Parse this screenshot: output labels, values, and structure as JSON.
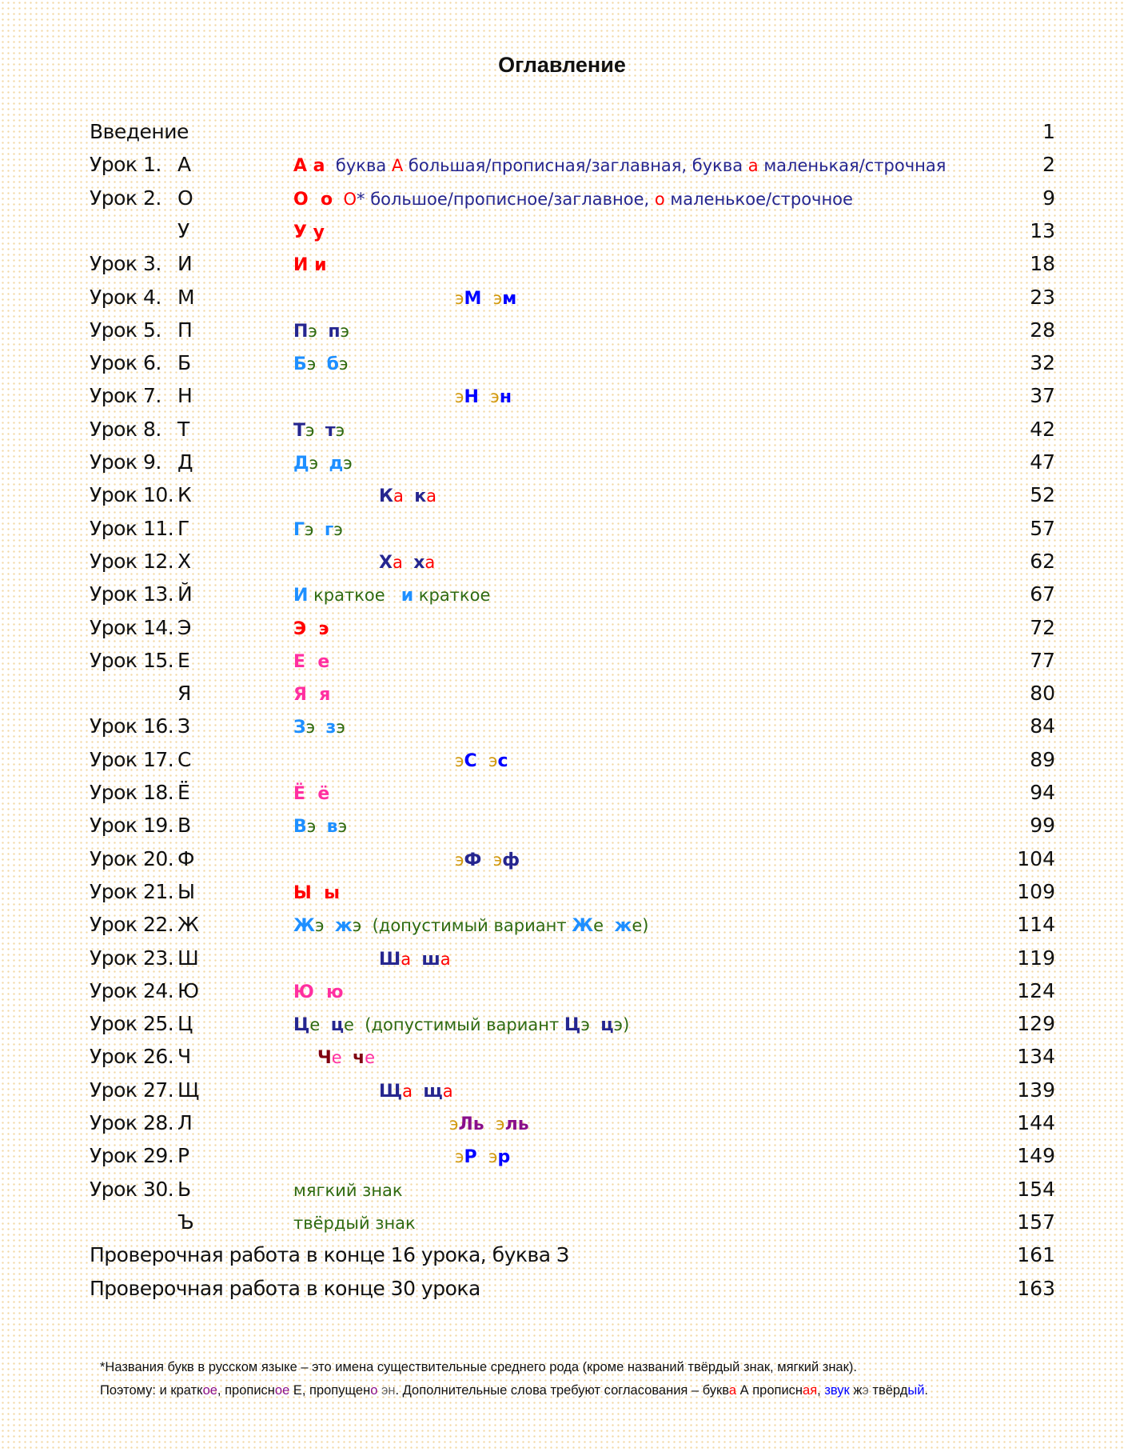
{
  "title": "Оглавление",
  "colors": {
    "r": "#ff0000",
    "n": "#26268f",
    "g": "#2f6a10",
    "l": "#1e8fff",
    "y": "#d29a10",
    "b": "#0000ff",
    "m": "#ff2fa0",
    "d": "#800010",
    "p": "#8a0f8a",
    "k": "#111111",
    "e": "#666666"
  },
  "rows": [
    {
      "label": "Введение",
      "letter": "",
      "page": "1",
      "segs": []
    },
    {
      "label": "Урок 1.",
      "letter": "А",
      "page": "2",
      "segs": [
        {
          "t": "А а",
          "c": "r",
          "b": 1
        },
        {
          "t": "  буква ",
          "c": "n"
        },
        {
          "t": "А",
          "c": "r"
        },
        {
          "t": " большая/прописная/заглавная, буква ",
          "c": "n"
        },
        {
          "t": "а",
          "c": "r"
        },
        {
          "t": " маленькая/строчная",
          "c": "n"
        }
      ]
    },
    {
      "label": "Урок 2.",
      "letter": "О",
      "page": "9",
      "segs": [
        {
          "t": "О  о",
          "c": "r",
          "b": 1
        },
        {
          "t": "  О",
          "c": "r"
        },
        {
          "t": "* большое/прописное/заглавное, ",
          "c": "n"
        },
        {
          "t": "о",
          "c": "r"
        },
        {
          "t": " маленькое/строчное",
          "c": "n"
        }
      ]
    },
    {
      "label": "",
      "letter": "У",
      "page": "13",
      "segs": [
        {
          "t": "У у",
          "c": "r",
          "b": 1
        }
      ]
    },
    {
      "label": "Урок 3.",
      "letter": "И",
      "page": "18",
      "segs": [
        {
          "t": "И и",
          "c": "r",
          "b": 1
        }
      ]
    },
    {
      "label": "Урок 4.",
      "letter": "М",
      "page": "23",
      "segs": [
        {
          "t": "э",
          "c": "y"
        },
        {
          "t": "М ",
          "c": "b",
          "b": 1
        },
        {
          "t": " э",
          "c": "y"
        },
        {
          "t": "м",
          "c": "b",
          "b": 1
        }
      ]
    },
    {
      "label": "Урок 5.",
      "letter": "П",
      "page": "28",
      "segs": [
        {
          "t": "П",
          "c": "n",
          "b": 1
        },
        {
          "t": "э  ",
          "c": "g"
        },
        {
          "t": "п",
          "c": "n",
          "b": 1
        },
        {
          "t": "э",
          "c": "g"
        }
      ]
    },
    {
      "label": "Урок 6.",
      "letter": "Б",
      "page": "32",
      "segs": [
        {
          "t": "Б",
          "c": "l",
          "b": 1
        },
        {
          "t": "э  ",
          "c": "g"
        },
        {
          "t": "б",
          "c": "l",
          "b": 1
        },
        {
          "t": "э",
          "c": "g"
        }
      ]
    },
    {
      "label": "Урок 7.",
      "letter": "Н",
      "page": "37",
      "segs": [
        {
          "t": "э",
          "c": "y"
        },
        {
          "t": "Н ",
          "c": "b",
          "b": 1
        },
        {
          "t": " э",
          "c": "y"
        },
        {
          "t": "н",
          "c": "b",
          "b": 1
        }
      ]
    },
    {
      "label": "Урок 8.",
      "letter": "Т",
      "page": "42",
      "segs": [
        {
          "t": "Т",
          "c": "n",
          "b": 1
        },
        {
          "t": "э  ",
          "c": "g"
        },
        {
          "t": "т",
          "c": "n",
          "b": 1
        },
        {
          "t": "э",
          "c": "g"
        }
      ]
    },
    {
      "label": "Урок 9.",
      "letter": "Д",
      "page": "47",
      "segs": [
        {
          "t": "Д",
          "c": "l",
          "b": 1
        },
        {
          "t": "э  ",
          "c": "g"
        },
        {
          "t": "д",
          "c": "l",
          "b": 1
        },
        {
          "t": "э",
          "c": "g"
        }
      ]
    },
    {
      "label": "Урок 10.",
      "letter": "К",
      "page": "52",
      "segs": [
        {
          "t": "К",
          "c": "n",
          "b": 1
        },
        {
          "t": "а  ",
          "c": "r"
        },
        {
          "t": "к",
          "c": "n",
          "b": 1
        },
        {
          "t": "а",
          "c": "r"
        }
      ]
    },
    {
      "label": "Урок 11.",
      "letter": "Г",
      "page": "57",
      "segs": [
        {
          "t": "Г",
          "c": "l",
          "b": 1
        },
        {
          "t": "э  ",
          "c": "g"
        },
        {
          "t": "г",
          "c": "l",
          "b": 1
        },
        {
          "t": "э",
          "c": "g"
        }
      ]
    },
    {
      "label": "Урок 12.",
      "letter": "Х",
      "page": "62",
      "segs": [
        {
          "t": "Х",
          "c": "n",
          "b": 1
        },
        {
          "t": "а  ",
          "c": "r"
        },
        {
          "t": "х",
          "c": "n",
          "b": 1
        },
        {
          "t": "а",
          "c": "r"
        }
      ]
    },
    {
      "label": "Урок 13.",
      "letter": "Й",
      "page": "67",
      "segs": [
        {
          "t": "И",
          "c": "l",
          "b": 1
        },
        {
          "t": " краткое   ",
          "c": "g"
        },
        {
          "t": "и",
          "c": "l",
          "b": 1
        },
        {
          "t": " краткое",
          "c": "g"
        }
      ]
    },
    {
      "label": "Урок 14.",
      "letter": "Э",
      "page": "72",
      "segs": [
        {
          "t": "Э  э",
          "c": "r",
          "b": 1
        }
      ]
    },
    {
      "label": "Урок 15.",
      "letter": "Е",
      "page": "77",
      "segs": [
        {
          "t": "Е  е",
          "c": "m",
          "b": 1
        }
      ]
    },
    {
      "label": "",
      "letter": "Я",
      "page": "80",
      "segs": [
        {
          "t": "Я  я",
          "c": "m",
          "b": 1
        }
      ]
    },
    {
      "label": "Урок 16.",
      "letter": "З",
      "page": "84",
      "segs": [
        {
          "t": "З",
          "c": "l",
          "b": 1
        },
        {
          "t": "э  ",
          "c": "g"
        },
        {
          "t": "з",
          "c": "l",
          "b": 1
        },
        {
          "t": "э",
          "c": "g"
        }
      ]
    },
    {
      "label": "Урок 17.",
      "letter": "С",
      "page": "89",
      "segs": [
        {
          "t": "э",
          "c": "y"
        },
        {
          "t": "С ",
          "c": "b",
          "b": 1
        },
        {
          "t": " э",
          "c": "y"
        },
        {
          "t": "с",
          "c": "b",
          "b": 1
        }
      ]
    },
    {
      "label": "Урок 18.",
      "letter": "Ё",
      "page": "94",
      "segs": [
        {
          "t": "Ё  ё",
          "c": "m",
          "b": 1
        }
      ]
    },
    {
      "label": "Урок 19.",
      "letter": "В",
      "page": "99",
      "segs": [
        {
          "t": "В",
          "c": "l",
          "b": 1
        },
        {
          "t": "э  ",
          "c": "g"
        },
        {
          "t": "в",
          "c": "l",
          "b": 1
        },
        {
          "t": "э",
          "c": "g"
        }
      ]
    },
    {
      "label": "Урок 20.",
      "letter": "Ф",
      "page": "104",
      "segs": [
        {
          "t": "э",
          "c": "y"
        },
        {
          "t": "Ф ",
          "c": "n",
          "b": 1
        },
        {
          "t": " э",
          "c": "y"
        },
        {
          "t": "ф",
          "c": "n",
          "b": 1
        }
      ]
    },
    {
      "label": "Урок 21.",
      "letter": "Ы",
      "page": "109",
      "segs": [
        {
          "t": "Ы  ы",
          "c": "r",
          "b": 1
        }
      ]
    },
    {
      "label": "Урок 22.",
      "letter": "Ж",
      "page": "114",
      "segs": [
        {
          "t": "Ж",
          "c": "l",
          "b": 1
        },
        {
          "t": "э  ",
          "c": "g"
        },
        {
          "t": "ж",
          "c": "l",
          "b": 1
        },
        {
          "t": "э  (допустимый вариант ",
          "c": "g"
        },
        {
          "t": "Ж",
          "c": "l",
          "b": 1
        },
        {
          "t": "е  ",
          "c": "g"
        },
        {
          "t": "ж",
          "c": "l",
          "b": 1
        },
        {
          "t": "е)",
          "c": "g"
        }
      ]
    },
    {
      "label": "Урок 23.",
      "letter": "Ш",
      "page": "119",
      "segs": [
        {
          "t": "Ш",
          "c": "n",
          "b": 1
        },
        {
          "t": "а  ",
          "c": "r"
        },
        {
          "t": "ш",
          "c": "n",
          "b": 1
        },
        {
          "t": "а",
          "c": "r"
        }
      ]
    },
    {
      "label": "Урок 24.",
      "letter": "Ю",
      "page": "124",
      "segs": [
        {
          "t": "Ю  ю",
          "c": "m",
          "b": 1
        }
      ]
    },
    {
      "label": "Урок 25.",
      "letter": "Ц",
      "page": "129",
      "segs": [
        {
          "t": "Ц",
          "c": "n",
          "b": 1
        },
        {
          "t": "е  ",
          "c": "g"
        },
        {
          "t": "ц",
          "c": "n",
          "b": 1
        },
        {
          "t": "е  (допустимый вариант ",
          "c": "g"
        },
        {
          "t": "Ц",
          "c": "n",
          "b": 1
        },
        {
          "t": "э  ",
          "c": "g"
        },
        {
          "t": "ц",
          "c": "n",
          "b": 1
        },
        {
          "t": "э)",
          "c": "g"
        }
      ]
    },
    {
      "label": "Урок 26.",
      "letter": "Ч",
      "page": "134",
      "segs": [
        {
          "t": "Ч",
          "c": "d",
          "b": 1
        },
        {
          "t": "е  ",
          "c": "m"
        },
        {
          "t": "ч",
          "c": "d",
          "b": 1
        },
        {
          "t": "е",
          "c": "m"
        }
      ]
    },
    {
      "label": "Урок 27.",
      "letter": "Щ",
      "page": "139",
      "segs": [
        {
          "t": "Щ",
          "c": "n",
          "b": 1
        },
        {
          "t": "а  ",
          "c": "r"
        },
        {
          "t": "щ",
          "c": "n",
          "b": 1
        },
        {
          "t": "а",
          "c": "r"
        }
      ]
    },
    {
      "label": "Урок 28.",
      "letter": "Л",
      "page": "144",
      "segs": [
        {
          "t": "э",
          "c": "y"
        },
        {
          "t": "Ль ",
          "c": "p",
          "b": 1
        },
        {
          "t": " э",
          "c": "y"
        },
        {
          "t": "ль",
          "c": "p",
          "b": 1
        }
      ]
    },
    {
      "label": "Урок 29.",
      "letter": "Р",
      "page": "149",
      "segs": [
        {
          "t": "э",
          "c": "y"
        },
        {
          "t": "Р ",
          "c": "b",
          "b": 1
        },
        {
          "t": " э",
          "c": "y"
        },
        {
          "t": "р",
          "c": "b",
          "b": 1
        }
      ]
    },
    {
      "label": "Урок 30.",
      "letter": "Ь",
      "page": "154",
      "segs": [
        {
          "t": "мягкий знак",
          "c": "g"
        }
      ]
    },
    {
      "label": "",
      "letter": "Ъ",
      "page": "157",
      "segs": [
        {
          "t": "твёрдый знак",
          "c": "g"
        }
      ]
    },
    {
      "label": "Проверочная работа в конце 16 урока, буква З",
      "letter": "",
      "page": "161",
      "segs": []
    },
    {
      "label": "Проверочная работа в конце 30 урока",
      "letter": "",
      "page": "163",
      "segs": []
    }
  ],
  "footnote": [
    [
      {
        "t": "*Названия букв в русском языке – это имена существительные среднего рода (кроме названий твёрдый знак, мягкий знак).",
        "c": "k"
      }
    ],
    [
      {
        "t": "Поэтому: и кратк",
        "c": "k"
      },
      {
        "t": "ое",
        "c": "p"
      },
      {
        "t": ", прописн",
        "c": "k"
      },
      {
        "t": "ое",
        "c": "p"
      },
      {
        "t": " Е, пропущен",
        "c": "k"
      },
      {
        "t": "о",
        "c": "p"
      },
      {
        "t": " ",
        "c": "k"
      },
      {
        "t": "эн",
        "c": "e"
      },
      {
        "t": ". Дополнительные слова требуют согласования – букв",
        "c": "k"
      },
      {
        "t": "а",
        "c": "r"
      },
      {
        "t": " А прописн",
        "c": "k"
      },
      {
        "t": "ая",
        "c": "r"
      },
      {
        "t": ", ",
        "c": "k"
      },
      {
        "t": "звук",
        "c": "b"
      },
      {
        "t": " ж",
        "c": "k"
      },
      {
        "t": "э",
        "c": "e"
      },
      {
        "t": " твёрд",
        "c": "k"
      },
      {
        "t": "ый",
        "c": "b"
      },
      {
        "t": ".",
        "c": "k"
      }
    ]
  ]
}
